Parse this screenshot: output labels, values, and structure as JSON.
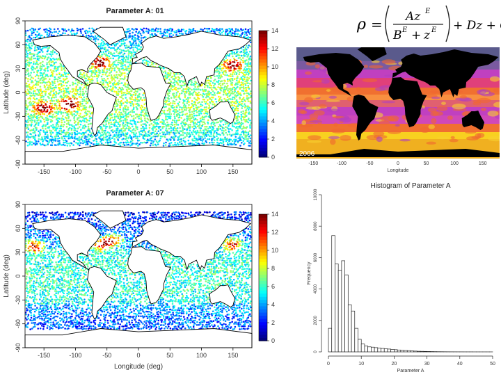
{
  "formula": {
    "rho": "ρ",
    "equals": "=",
    "numerator": "Az",
    "num_exp": "E",
    "den_b": "B",
    "den_b_exp": "E",
    "den_plus": "+",
    "den_z": "z",
    "den_z_exp": "E",
    "tail": "+ Dz + C"
  },
  "maps": [
    {
      "title": "Parameter A: 01",
      "ylabel": "Latitude (deg)",
      "xlabel": "",
      "xticks": [
        -150,
        -100,
        -50,
        0,
        50,
        100,
        150
      ],
      "yticks": [
        -90,
        -60,
        -30,
        0,
        30,
        60,
        90
      ],
      "colorbar_ticks": [
        0,
        2,
        4,
        6,
        8,
        10,
        12,
        14
      ]
    },
    {
      "title": "Parameter A: 07",
      "ylabel": "Latitude (deg)",
      "xlabel": "Longitude (deg)",
      "xticks": [
        -150,
        -100,
        -50,
        0,
        50,
        100,
        150
      ],
      "yticks": [
        -90,
        -60,
        -30,
        0,
        30,
        60,
        90
      ],
      "colorbar_ticks": [
        0,
        2,
        4,
        6,
        8,
        10,
        12,
        14
      ]
    }
  ],
  "sst": {
    "year": "2006",
    "xlabel": "Longitude",
    "xticks": [
      -150,
      -100,
      -50,
      0,
      50,
      100,
      150
    ]
  },
  "colors": {
    "ocean_low": "#1f2fbf",
    "ocean_mid": "#3fb6e6",
    "ocean_high": "#c0141a",
    "land": "#ffffff",
    "sst_land": "#000000",
    "sst_magenta": "#c040c0",
    "sst_orange": "#f07030",
    "sst_yellow": "#f8d020"
  },
  "chart_data": {
    "type": "bar",
    "title": "Histogram of Parameter A",
    "xlabel": "Parameter A",
    "ylabel": "Frequency",
    "xlim": [
      0,
      50
    ],
    "ylim": [
      0,
      10000
    ],
    "xticks": [
      0,
      10,
      20,
      30,
      40,
      50
    ],
    "yticks": [
      0,
      2000,
      4000,
      6000,
      8000,
      10000
    ],
    "bin_width": 1,
    "bin_starts": [
      0,
      1,
      2,
      3,
      4,
      5,
      6,
      7,
      8,
      9,
      10,
      11,
      12,
      13,
      14,
      15,
      16,
      17,
      18,
      19,
      20,
      21,
      22,
      23,
      24,
      25,
      26,
      27,
      28,
      29,
      30,
      31,
      32,
      33,
      34,
      35,
      36,
      37,
      38,
      39,
      40,
      41,
      42,
      43,
      44,
      45,
      46,
      47,
      48,
      49
    ],
    "values": [
      1500,
      7400,
      5600,
      5200,
      5800,
      4900,
      3000,
      2600,
      1500,
      800,
      500,
      380,
      320,
      300,
      270,
      250,
      220,
      200,
      180,
      160,
      140,
      120,
      100,
      90,
      80,
      60,
      50,
      40,
      35,
      30,
      25,
      20,
      15,
      12,
      10,
      8,
      6,
      5,
      4,
      3,
      3,
      2,
      2,
      2,
      1,
      1,
      1,
      1,
      1,
      1
    ]
  }
}
